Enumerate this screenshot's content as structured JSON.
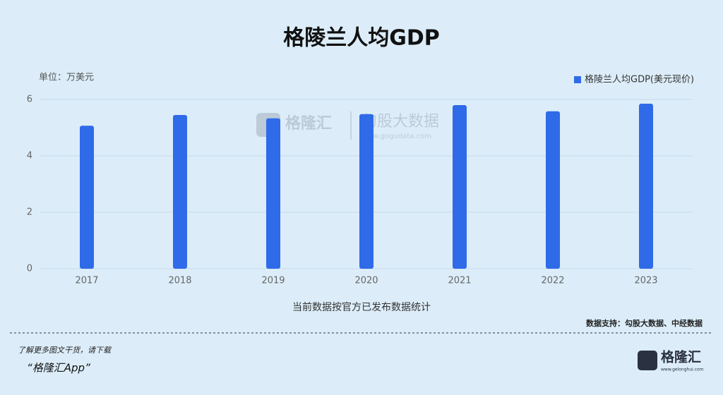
{
  "chart_data": {
    "type": "bar",
    "title": "格陵兰人均GDP",
    "unit_label": "单位：万美元",
    "categories": [
      "2017",
      "2018",
      "2019",
      "2020",
      "2021",
      "2022",
      "2023"
    ],
    "series": [
      {
        "name": "格陵兰人均GDP(美元现价)",
        "color": "#2f6be8",
        "values": [
          5.07,
          5.45,
          5.33,
          5.48,
          5.8,
          5.58,
          5.85
        ]
      }
    ],
    "ylim": [
      0,
      6
    ],
    "yticks": [
      0,
      2,
      4,
      6
    ],
    "grid": true,
    "legend": "top-right",
    "note": "当前数据按官方已发布数据统计",
    "source": "数据支持：勾股大数据、中经数据"
  },
  "watermark": {
    "brand": "格隆汇",
    "name": "勾股大数据",
    "url": "www.gogudata.com"
  },
  "footer": {
    "prompt": "了解更多图文干货，请下载",
    "app": "“格隆汇App”"
  },
  "logo": {
    "name": "格隆汇",
    "url": "www.gelonghui.com"
  }
}
